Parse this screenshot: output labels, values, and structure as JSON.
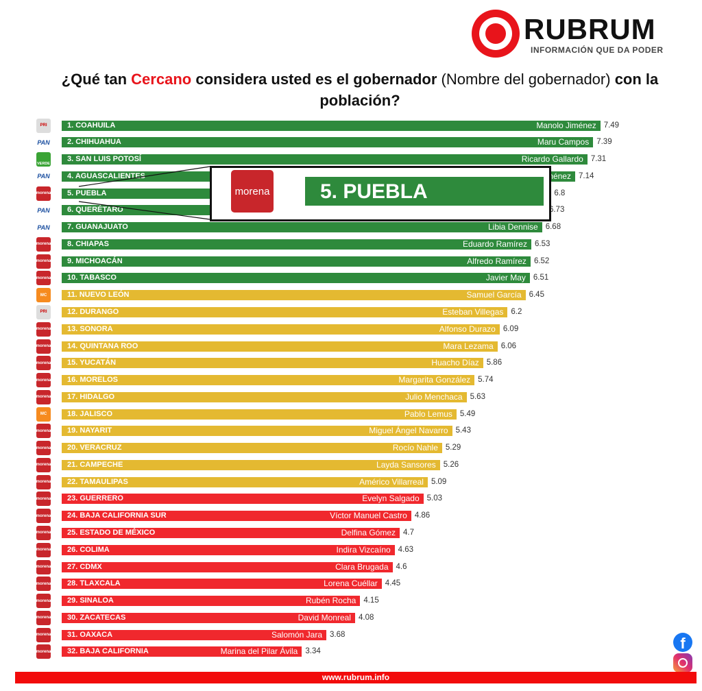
{
  "brand": {
    "name": "RUBRUM",
    "tagline": "INFORMACIÓN QUE DA PODER",
    "accent": "#e8141b"
  },
  "title": {
    "part1": "¿Qué tan ",
    "highlight": "Cercano",
    "part2": " considera usted es el gobernador ",
    "normal": "(Nombre del gobernador)",
    "part3": " con la población?"
  },
  "callout": {
    "label": "5. PUEBLA",
    "party": "morena"
  },
  "footer": {
    "url": "www.rubrum.info"
  },
  "social": {
    "facebook": "facebook-icon",
    "instagram": "instagram-icon"
  },
  "colors": {
    "green": "#2e8a3c",
    "yellow": "#e4b931",
    "red": "#f0282d",
    "morena": "#c8262b",
    "pan": "#1b4fa0",
    "mc": "#f68b1f"
  },
  "chart_data": {
    "type": "bar",
    "orientation": "horizontal",
    "categories": [
      "1. COAHUILA",
      "2. CHIHUAHUA",
      "3. SAN LUIS POTOSÍ",
      "4. AGUASCALIENTES",
      "5. PUEBLA",
      "6. QUERÉTARO",
      "7. GUANAJUATO",
      "8. CHIAPAS",
      "9. MICHOACÁN",
      "10. TABASCO",
      "11. NUEVO LEÓN",
      "12. DURANGO",
      "13. SONORA",
      "14. QUINTANA ROO",
      "15. YUCATÁN",
      "16. MORELOS",
      "17. HIDALGO",
      "18. JALISCO",
      "19. NAYARIT",
      "20. VERACRUZ",
      "21. CAMPECHE",
      "22. TAMAULIPAS",
      "23. GUERRERO",
      "24. BAJA CALIFORNIA SUR",
      "25. ESTADO DE MÉXICO",
      "26. COLIMA",
      "27. CDMX",
      "28. TLAXCALA",
      "29. SINALOA",
      "30. ZACATECAS",
      "31. OAXACA",
      "32. BAJA CALIFORNIA"
    ],
    "governors": [
      "Manolo Jiménez",
      "Maru Campos",
      "Ricardo Gallardo",
      "Tere Jiménez",
      "",
      "",
      "Libia Dennise",
      "Eduardo Ramírez",
      "Alfredo Ramírez",
      "Javier May",
      "Samuel García",
      "Esteban Villegas",
      "Alfonso Durazo",
      "Mara Lezama",
      "Huacho Díaz",
      "Margarita González",
      "Julio Menchaca",
      "Pablo Lemus",
      "Miguel Ángel Navarro",
      "Rocío Nahle",
      "Layda Sansores",
      "Américo Villarreal",
      "Evelyn Salgado",
      "Víctor Manuel Castro",
      "Delfina Gómez",
      "Indira Vizcaíno",
      "Clara Brugada",
      "Lorena Cuéllar",
      "Rubén Rocha",
      "David Monreal",
      "Salomón Jara",
      "Marina del Pilar Ávila"
    ],
    "parties": [
      "PRI",
      "PAN",
      "VERDE",
      "PAN",
      "morena",
      "PAN",
      "PAN",
      "morena",
      "morena",
      "morena",
      "MC",
      "PRI",
      "morena",
      "morena",
      "morena",
      "morena",
      "morena",
      "MC",
      "morena",
      "morena",
      "morena",
      "morena",
      "morena",
      "morena",
      "morena",
      "morena",
      "morena",
      "morena",
      "morena",
      "morena",
      "morena",
      "morena"
    ],
    "values": [
      7.49,
      7.39,
      7.31,
      7.14,
      6.8,
      6.73,
      6.68,
      6.53,
      6.52,
      6.51,
      6.45,
      6.2,
      6.09,
      6.06,
      5.86,
      5.74,
      5.63,
      5.49,
      5.43,
      5.29,
      5.26,
      5.09,
      5.03,
      4.86,
      4.7,
      4.63,
      4.6,
      4.45,
      4.15,
      4.08,
      3.68,
      3.34
    ],
    "tiers": [
      "green",
      "green",
      "green",
      "green",
      "green",
      "green",
      "green",
      "green",
      "green",
      "green",
      "yellow",
      "yellow",
      "yellow",
      "yellow",
      "yellow",
      "yellow",
      "yellow",
      "yellow",
      "yellow",
      "yellow",
      "yellow",
      "yellow",
      "red",
      "red",
      "red",
      "red",
      "red",
      "red",
      "red",
      "red",
      "red",
      "red"
    ],
    "xlim": [
      0,
      7.5
    ],
    "grid": false,
    "legend": "none"
  }
}
